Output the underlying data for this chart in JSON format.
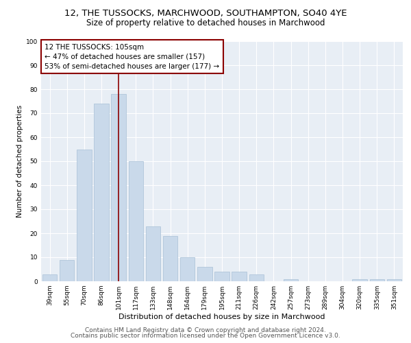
{
  "title1": "12, THE TUSSOCKS, MARCHWOOD, SOUTHAMPTON, SO40 4YE",
  "title2": "Size of property relative to detached houses in Marchwood",
  "xlabel": "Distribution of detached houses by size in Marchwood",
  "ylabel": "Number of detached properties",
  "categories": [
    "39sqm",
    "55sqm",
    "70sqm",
    "86sqm",
    "101sqm",
    "117sqm",
    "133sqm",
    "148sqm",
    "164sqm",
    "179sqm",
    "195sqm",
    "211sqm",
    "226sqm",
    "242sqm",
    "257sqm",
    "273sqm",
    "289sqm",
    "304sqm",
    "320sqm",
    "335sqm",
    "351sqm"
  ],
  "values": [
    3,
    9,
    55,
    74,
    78,
    50,
    23,
    19,
    10,
    6,
    4,
    4,
    3,
    0,
    1,
    0,
    0,
    0,
    1,
    1,
    1
  ],
  "bar_color": "#c9d9ea",
  "bar_edge_color": "#a8c0d6",
  "vline_x": 4,
  "vline_color": "#8b0000",
  "annotation_text": "12 THE TUSSOCKS: 105sqm\n← 47% of detached houses are smaller (157)\n53% of semi-detached houses are larger (177) →",
  "annotation_box_color": "white",
  "annotation_box_edge_color": "#8b0000",
  "footer1": "Contains HM Land Registry data © Crown copyright and database right 2024.",
  "footer2": "Contains public sector information licensed under the Open Government Licence v3.0.",
  "bg_color": "#e8eef5",
  "grid_color": "white",
  "ylim": [
    0,
    100
  ],
  "title1_fontsize": 9.5,
  "title2_fontsize": 8.5,
  "xlabel_fontsize": 8,
  "ylabel_fontsize": 7.5,
  "tick_fontsize": 6.5,
  "annotation_fontsize": 7.5,
  "footer_fontsize": 6.5
}
